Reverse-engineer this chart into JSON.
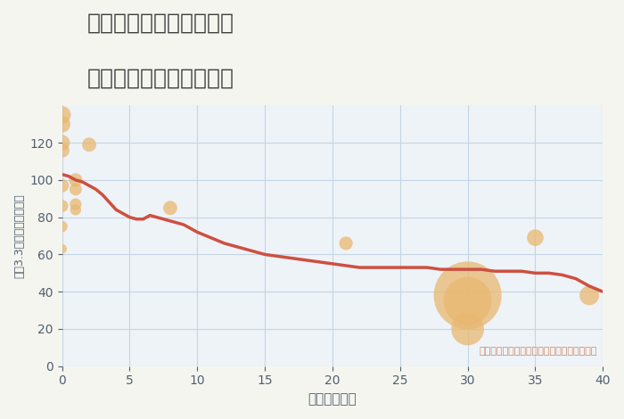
{
  "title_line1": "愛知県春日井市八光町の",
  "title_line2": "築年数別中古戸建て価格",
  "xlabel": "築年数（年）",
  "ylabel": "坪（3.3㎡）単価（万円）",
  "background_color": "#f5f5f0",
  "plot_bg_color": "#eef3f8",
  "grid_color": "#c5d5e5",
  "annotation": "円の大きさは、取引のあった物件面積を示す",
  "annotation_color": "#d4845a",
  "xlim": [
    0,
    40
  ],
  "ylim": [
    0,
    140
  ],
  "xticks": [
    0,
    5,
    10,
    15,
    20,
    25,
    30,
    35,
    40
  ],
  "yticks": [
    0,
    20,
    40,
    60,
    80,
    100,
    120
  ],
  "line_color": "#cd5040",
  "line_width": 2.5,
  "line_x": [
    0,
    0.5,
    1,
    1.5,
    2,
    2.5,
    3,
    3.5,
    4,
    4.5,
    5,
    5.5,
    6,
    6.5,
    7,
    7.5,
    8,
    8.5,
    9,
    9.5,
    10,
    11,
    12,
    13,
    14,
    15,
    16,
    17,
    18,
    19,
    20,
    21,
    22,
    23,
    24,
    25,
    26,
    27,
    28,
    29,
    30,
    31,
    32,
    33,
    34,
    35,
    36,
    37,
    38,
    39,
    40
  ],
  "line_y": [
    103,
    102,
    100,
    99,
    97,
    95,
    92,
    88,
    84,
    82,
    80,
    79,
    79,
    81,
    80,
    79,
    78,
    77,
    76,
    74,
    72,
    69,
    66,
    64,
    62,
    60,
    59,
    58,
    57,
    56,
    55,
    54,
    53,
    53,
    53,
    53,
    53,
    53,
    52,
    52,
    52,
    52,
    51,
    51,
    51,
    50,
    50,
    49,
    47,
    43,
    40
  ],
  "scatter_x": [
    0,
    0,
    0,
    0,
    0,
    0,
    0,
    0,
    1,
    1,
    1,
    1,
    2,
    8,
    21,
    30,
    30,
    30,
    35,
    39
  ],
  "scatter_y": [
    135,
    130,
    120,
    116,
    97,
    86,
    75,
    63,
    100,
    95,
    87,
    84,
    119,
    85,
    66,
    38,
    35,
    20,
    69,
    38
  ],
  "scatter_size": [
    200,
    180,
    160,
    140,
    120,
    100,
    80,
    60,
    120,
    100,
    90,
    80,
    130,
    130,
    120,
    3000,
    1500,
    700,
    180,
    250
  ],
  "scatter_color": "#e8b870",
  "scatter_alpha": 0.75,
  "title_color": "#404040",
  "axis_label_color": "#506070",
  "tick_color": "#506070",
  "tick_fontsize": 10,
  "title_fontsize": 18,
  "xlabel_fontsize": 11,
  "ylabel_fontsize": 9
}
